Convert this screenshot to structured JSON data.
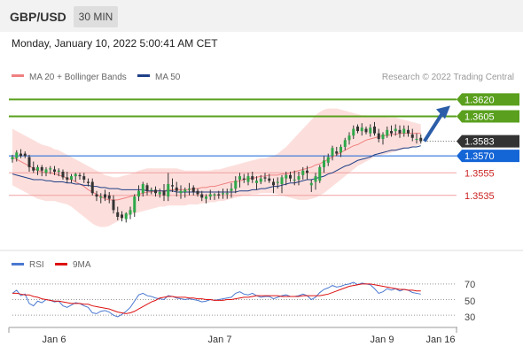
{
  "header": {
    "pair": "GBP/USD",
    "timeframe": "30 MIN"
  },
  "timestamp": "Monday, January 10, 2022 5:00:41 AM CET",
  "legend": {
    "ma20": "MA 20 + Bollinger Bands",
    "ma50": "MA 50",
    "copyright": "Research © 2022 Trading Central"
  },
  "colors": {
    "ma20": "#f08080",
    "ma50": "#1f3f87",
    "band": "#fbd4d0",
    "green": "#5aa01e",
    "blue": "#1465d6",
    "red": "#cc2222",
    "candle_up": "#2ea84a",
    "candle_down": "#333333"
  },
  "levels": {
    "r2": {
      "label": "1.3620",
      "value": 1.362
    },
    "r1": {
      "label": "1.3605",
      "value": 1.3605
    },
    "last": {
      "label": "1.3583",
      "value": 1.3583
    },
    "pivot": {
      "label": "1.3570",
      "value": 1.357
    },
    "s1": {
      "label": "1.3555",
      "value": 1.3555
    },
    "s2": {
      "label": "1.3535",
      "value": 1.3535
    }
  },
  "rsi_legend": {
    "rsi": "RSI",
    "ma": "9MA"
  },
  "rsi_axis": {
    "ticks": [
      "70",
      "50",
      "30"
    ]
  },
  "x_axis": {
    "ticks": [
      "Jan 6",
      "Jan 7",
      "Jan 9",
      "Jan 16"
    ]
  },
  "chart_data": {
    "type": "candlestick",
    "ylim": [
      1.3487,
      1.3636
    ],
    "candles": [
      [
        1.3567,
        1.3571,
        1.3564,
        1.3569
      ],
      [
        1.3568,
        1.3575,
        1.3565,
        1.3573
      ],
      [
        1.3572,
        1.3576,
        1.3568,
        1.357
      ],
      [
        1.3572,
        1.3574,
        1.3568,
        1.357
      ],
      [
        1.3569,
        1.3571,
        1.3556,
        1.356
      ],
      [
        1.356,
        1.3565,
        1.3555,
        1.3557
      ],
      [
        1.3557,
        1.3562,
        1.3553,
        1.356
      ],
      [
        1.356,
        1.3562,
        1.3552,
        1.3557
      ],
      [
        1.3555,
        1.356,
        1.3552,
        1.3558
      ],
      [
        1.3558,
        1.3561,
        1.3554,
        1.3559
      ],
      [
        1.3558,
        1.3561,
        1.3553,
        1.3556
      ],
      [
        1.3556,
        1.3559,
        1.3552,
        1.3557
      ],
      [
        1.3556,
        1.3558,
        1.3549,
        1.3551
      ],
      [
        1.3551,
        1.3556,
        1.3546,
        1.3549
      ],
      [
        1.3549,
        1.3554,
        1.3546,
        1.3552
      ],
      [
        1.3552,
        1.3555,
        1.3547,
        1.3554
      ],
      [
        1.3553,
        1.3555,
        1.3549,
        1.3552
      ],
      [
        1.3552,
        1.3555,
        1.3546,
        1.3549
      ],
      [
        1.3547,
        1.355,
        1.3543,
        1.3546
      ],
      [
        1.3547,
        1.355,
        1.3535,
        1.3537
      ],
      [
        1.3536,
        1.3539,
        1.353,
        1.3534
      ],
      [
        1.3533,
        1.3537,
        1.3528,
        1.3534
      ],
      [
        1.3536,
        1.354,
        1.353,
        1.3533
      ],
      [
        1.3535,
        1.3538,
        1.3528,
        1.3532
      ],
      [
        1.3531,
        1.3535,
        1.3519,
        1.3522
      ],
      [
        1.352,
        1.3525,
        1.3513,
        1.3516
      ],
      [
        1.3518,
        1.3521,
        1.3512,
        1.3515
      ],
      [
        1.3514,
        1.352,
        1.3511,
        1.3519
      ],
      [
        1.3518,
        1.3525,
        1.3514,
        1.3522
      ],
      [
        1.352,
        1.3536,
        1.3516,
        1.3534
      ],
      [
        1.3534,
        1.3544,
        1.353,
        1.3539
      ],
      [
        1.3537,
        1.3547,
        1.3534,
        1.3545
      ],
      [
        1.3544,
        1.3546,
        1.3535,
        1.3539
      ],
      [
        1.354,
        1.3542,
        1.3536,
        1.354
      ],
      [
        1.354,
        1.3543,
        1.3534,
        1.3537
      ],
      [
        1.3536,
        1.3541,
        1.3533,
        1.3538
      ],
      [
        1.3539,
        1.3545,
        1.353,
        1.3535
      ],
      [
        1.3534,
        1.3555,
        1.353,
        1.3545
      ],
      [
        1.3544,
        1.355,
        1.3538,
        1.3543
      ],
      [
        1.3542,
        1.3547,
        1.3534,
        1.3539
      ],
      [
        1.3537,
        1.3544,
        1.3532,
        1.3539
      ],
      [
        1.3538,
        1.3542,
        1.3533,
        1.354
      ],
      [
        1.354,
        1.3546,
        1.3535,
        1.3541
      ],
      [
        1.3542,
        1.3544,
        1.3535,
        1.3538
      ],
      [
        1.3539,
        1.3541,
        1.3534,
        1.3536
      ],
      [
        1.3536,
        1.3539,
        1.353,
        1.3533
      ],
      [
        1.3532,
        1.3536,
        1.3528,
        1.3534
      ],
      [
        1.3534,
        1.354,
        1.3531,
        1.3536
      ],
      [
        1.3535,
        1.3537,
        1.3531,
        1.3536
      ],
      [
        1.3536,
        1.3539,
        1.3532,
        1.3535
      ],
      [
        1.3536,
        1.3541,
        1.3532,
        1.3537
      ],
      [
        1.3536,
        1.3541,
        1.3532,
        1.3537
      ],
      [
        1.3539,
        1.3546,
        1.3533,
        1.3541
      ],
      [
        1.3541,
        1.3552,
        1.3537,
        1.3548
      ],
      [
        1.3549,
        1.3555,
        1.3542,
        1.3552
      ],
      [
        1.355,
        1.3554,
        1.3546,
        1.3549
      ],
      [
        1.3547,
        1.3555,
        1.3544,
        1.3552
      ],
      [
        1.3552,
        1.3556,
        1.3546,
        1.3549
      ],
      [
        1.3546,
        1.3552,
        1.354,
        1.3548
      ],
      [
        1.3547,
        1.3553,
        1.3545,
        1.355
      ],
      [
        1.3551,
        1.3555,
        1.3547,
        1.355
      ],
      [
        1.355,
        1.3554,
        1.3546,
        1.3548
      ],
      [
        1.3547,
        1.355,
        1.3537,
        1.3544
      ],
      [
        1.3546,
        1.3551,
        1.3541,
        1.3547
      ],
      [
        1.3545,
        1.3553,
        1.3537,
        1.3551
      ],
      [
        1.355,
        1.3556,
        1.3544,
        1.3553
      ],
      [
        1.3553,
        1.3556,
        1.3547,
        1.355
      ],
      [
        1.3549,
        1.3557,
        1.3544,
        1.3549
      ],
      [
        1.3549,
        1.3556,
        1.3544,
        1.3552
      ],
      [
        1.3553,
        1.356,
        1.3549,
        1.3557
      ],
      [
        1.3557,
        1.3561,
        1.3549,
        1.3555
      ],
      [
        1.3544,
        1.3549,
        1.3538,
        1.3546
      ],
      [
        1.3547,
        1.3555,
        1.354,
        1.3552
      ],
      [
        1.3548,
        1.3562,
        1.3546,
        1.356
      ],
      [
        1.356,
        1.357,
        1.3555,
        1.3566
      ],
      [
        1.3564,
        1.3572,
        1.3561,
        1.3569
      ],
      [
        1.357,
        1.3579,
        1.3566,
        1.3577
      ],
      [
        1.3574,
        1.3578,
        1.357,
        1.3572
      ],
      [
        1.3573,
        1.358,
        1.3569,
        1.3578
      ],
      [
        1.3578,
        1.3586,
        1.3575,
        1.3584
      ],
      [
        1.3584,
        1.3591,
        1.358,
        1.3588
      ],
      [
        1.3588,
        1.3597,
        1.3585,
        1.3594
      ],
      [
        1.3596,
        1.3598,
        1.359,
        1.3592
      ],
      [
        1.3592,
        1.3599,
        1.3588,
        1.3595
      ],
      [
        1.3594,
        1.3596,
        1.3589,
        1.3591
      ],
      [
        1.359,
        1.3598,
        1.3587,
        1.3595
      ],
      [
        1.3596,
        1.36,
        1.3588,
        1.359
      ],
      [
        1.359,
        1.3594,
        1.3582,
        1.3585
      ],
      [
        1.3585,
        1.3591,
        1.358,
        1.3589
      ],
      [
        1.3588,
        1.3596,
        1.3586,
        1.3593
      ],
      [
        1.3592,
        1.3597,
        1.3587,
        1.359
      ],
      [
        1.3592,
        1.3598,
        1.3588,
        1.3594
      ],
      [
        1.3593,
        1.3597,
        1.3586,
        1.359
      ],
      [
        1.359,
        1.3597,
        1.3587,
        1.3594
      ],
      [
        1.3593,
        1.3597,
        1.3587,
        1.359
      ],
      [
        1.3589,
        1.3594,
        1.3583,
        1.3586
      ],
      [
        1.3585,
        1.359,
        1.3581,
        1.3585
      ],
      [
        1.3586,
        1.3589,
        1.3581,
        1.3583
      ]
    ],
    "ma20": [
      1.3569,
      1.3567,
      1.3565,
      1.3563,
      1.3561,
      1.3559,
      1.3557,
      1.3556,
      1.3555,
      1.3555,
      1.3554,
      1.3553,
      1.3552,
      1.355,
      1.3549,
      1.3547,
      1.3545,
      1.3543,
      1.354,
      1.3538,
      1.3536,
      1.3534,
      1.3532,
      1.3531,
      1.3531,
      1.3531,
      1.3532,
      1.3533,
      1.3534,
      1.3535,
      1.3536,
      1.3537,
      1.3538,
      1.3538,
      1.3539,
      1.3539,
      1.3539,
      1.354,
      1.354,
      1.354,
      1.354,
      1.354,
      1.354,
      1.3541,
      1.3541,
      1.3542,
      1.3542,
      1.3543,
      1.3543,
      1.3544,
      1.3545,
      1.3546,
      1.3547,
      1.3547,
      1.3548,
      1.3549,
      1.355,
      1.355,
      1.3551,
      1.3552,
      1.3552,
      1.3553,
      1.3553,
      1.3553,
      1.3554,
      1.3554,
      1.3555,
      1.3556,
      1.3557,
      1.3558,
      1.3559,
      1.356,
      1.3562,
      1.3563,
      1.3565,
      1.3567,
      1.3569,
      1.3571,
      1.3573,
      1.3575,
      1.3577,
      1.3579,
      1.358,
      1.3582,
      1.3584,
      1.3585,
      1.3586,
      1.3587,
      1.3588,
      1.3588,
      1.3589,
      1.3589,
      1.359,
      1.359,
      1.359,
      1.359,
      1.359,
      1.359
    ],
    "bb_upper": [
      1.3594,
      1.3592,
      1.359,
      1.3588,
      1.3586,
      1.3584,
      1.3582,
      1.358,
      1.3579,
      1.3578,
      1.3576,
      1.3575,
      1.3573,
      1.3571,
      1.3569,
      1.3567,
      1.3565,
      1.3563,
      1.3561,
      1.3559,
      1.3557,
      1.3555,
      1.3553,
      1.3552,
      1.3551,
      1.3551,
      1.3552,
      1.3553,
      1.3554,
      1.3555,
      1.3557,
      1.3558,
      1.3559,
      1.3559,
      1.3559,
      1.3559,
      1.3559,
      1.3559,
      1.3559,
      1.3559,
      1.3558,
      1.3557,
      1.3557,
      1.3557,
      1.3557,
      1.3557,
      1.3557,
      1.3557,
      1.3558,
      1.3558,
      1.3559,
      1.356,
      1.3561,
      1.3562,
      1.3563,
      1.3564,
      1.3565,
      1.3566,
      1.3567,
      1.3568,
      1.3568,
      1.3569,
      1.357,
      1.3572,
      1.3575,
      1.3578,
      1.3582,
      1.3586,
      1.359,
      1.3594,
      1.3598,
      1.3602,
      1.3606,
      1.3609,
      1.3611,
      1.3612,
      1.3612,
      1.3612,
      1.3611,
      1.361,
      1.3609,
      1.3608,
      1.3607,
      1.3606,
      1.3606,
      1.3605,
      1.3605,
      1.3605,
      1.3605,
      1.3604,
      1.3604,
      1.3604,
      1.3603,
      1.3602,
      1.3601,
      1.36,
      1.3599,
      1.3598
    ],
    "bb_lower": [
      1.3544,
      1.3542,
      1.354,
      1.3538,
      1.3536,
      1.3534,
      1.3532,
      1.3531,
      1.353,
      1.353,
      1.353,
      1.3529,
      1.3528,
      1.3527,
      1.3525,
      1.3522,
      1.3519,
      1.3516,
      1.3513,
      1.351,
      1.3508,
      1.3507,
      1.3507,
      1.3508,
      1.351,
      1.3512,
      1.3514,
      1.3516,
      1.3518,
      1.3519,
      1.352,
      1.3521,
      1.3522,
      1.3523,
      1.3524,
      1.3525,
      1.3525,
      1.3526,
      1.3526,
      1.3526,
      1.3526,
      1.3526,
      1.3527,
      1.3527,
      1.3527,
      1.3528,
      1.3528,
      1.3529,
      1.3529,
      1.353,
      1.353,
      1.3531,
      1.3532,
      1.3533,
      1.3534,
      1.3535,
      1.3535,
      1.3536,
      1.3536,
      1.3537,
      1.3537,
      1.3537,
      1.3537,
      1.3536,
      1.3535,
      1.3534,
      1.3533,
      1.3532,
      1.3531,
      1.3531,
      1.3531,
      1.3532,
      1.3533,
      1.3535,
      1.3537,
      1.354,
      1.3543,
      1.3546,
      1.3549,
      1.3552,
      1.3555,
      1.3558,
      1.3561,
      1.3563,
      1.3565,
      1.3567,
      1.3569,
      1.357,
      1.3571,
      1.3572,
      1.3573,
      1.3574,
      1.3575,
      1.3576,
      1.3577,
      1.3578,
      1.3579,
      1.358
    ],
    "ma50": [
      1.3554,
      1.3553,
      1.3552,
      1.3551,
      1.355,
      1.3549,
      1.3549,
      1.3549,
      1.3548,
      1.3548,
      1.3547,
      1.3547,
      1.3547,
      1.3546,
      1.3546,
      1.3545,
      1.3545,
      1.3544,
      1.3544,
      1.3543,
      1.3543,
      1.3542,
      1.3542,
      1.3541,
      1.3541,
      1.3541,
      1.354,
      1.354,
      1.354,
      1.354,
      1.354,
      1.354,
      1.3539,
      1.3539,
      1.3539,
      1.3539,
      1.3539,
      1.3539,
      1.3539,
      1.3538,
      1.3538,
      1.3538,
      1.3538,
      1.3538,
      1.3538,
      1.3538,
      1.3538,
      1.3538,
      1.3538,
      1.3538,
      1.3538,
      1.3538,
      1.3538,
      1.3538,
      1.3539,
      1.3539,
      1.3539,
      1.354,
      1.354,
      1.3541,
      1.3541,
      1.3542,
      1.3543,
      1.3543,
      1.3544,
      1.3545,
      1.3546,
      1.3546,
      1.3547,
      1.3548,
      1.3549,
      1.3549,
      1.355,
      1.3551,
      1.3552,
      1.3554,
      1.3555,
      1.3557,
      1.3559,
      1.3561,
      1.3562,
      1.3564,
      1.3566,
      1.3567,
      1.3568,
      1.3569,
      1.3571,
      1.3572,
      1.3573,
      1.3574,
      1.3575,
      1.3575,
      1.3576,
      1.3577,
      1.3577,
      1.3578,
      1.3578,
      1.3579
    ],
    "rsi": [
      58,
      62,
      55,
      57,
      45,
      42,
      48,
      46,
      50,
      49,
      47,
      48,
      42,
      40,
      43,
      46,
      45,
      42,
      40,
      33,
      32,
      35,
      36,
      34,
      30,
      28,
      31,
      35,
      40,
      48,
      56,
      58,
      55,
      54,
      52,
      51,
      50,
      55,
      54,
      52,
      51,
      50,
      51,
      50,
      49,
      47,
      48,
      50,
      49,
      50,
      51,
      52,
      53,
      58,
      60,
      57,
      56,
      58,
      55,
      53,
      54,
      54,
      51,
      53,
      55,
      56,
      54,
      54,
      55,
      57,
      55,
      50,
      53,
      59,
      63,
      65,
      68,
      66,
      67,
      69,
      70,
      72,
      69,
      71,
      70,
      69,
      64,
      58,
      60,
      64,
      62,
      64,
      61,
      63,
      62,
      59,
      58,
      57
    ],
    "rsi_ma": [
      58,
      58,
      57,
      56,
      56,
      54,
      53,
      51,
      50,
      49,
      48,
      48,
      47,
      46,
      45,
      45,
      45,
      44,
      44,
      42,
      41,
      40,
      39,
      38,
      36,
      34,
      33,
      32,
      33,
      35,
      38,
      41,
      44,
      47,
      49,
      52,
      53,
      54,
      54,
      53,
      53,
      53,
      52,
      52,
      51,
      51,
      50,
      50,
      49,
      49,
      49,
      50,
      50,
      51,
      52,
      53,
      53,
      54,
      55,
      55,
      55,
      55,
      55,
      55,
      54,
      54,
      54,
      54,
      54,
      55,
      55,
      55,
      55,
      55,
      56,
      57,
      59,
      61,
      63,
      65,
      67,
      68,
      69,
      70,
      70,
      70,
      69,
      68,
      67,
      66,
      65,
      64,
      63,
      63,
      62,
      62,
      61,
      61
    ]
  }
}
